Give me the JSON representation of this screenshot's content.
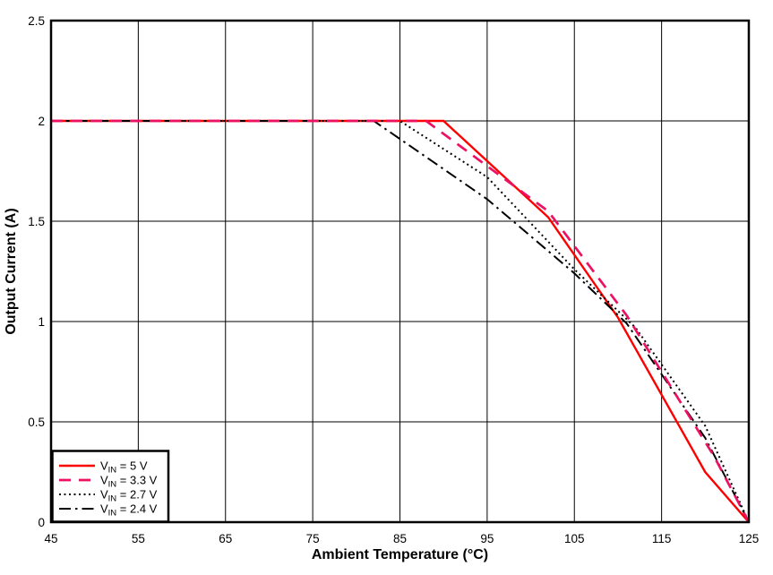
{
  "chart_data": {
    "type": "line",
    "title": "",
    "xlabel": "Ambient Temperature (°C)",
    "ylabel": "Output Current (A)",
    "xlim": [
      45,
      125
    ],
    "ylim": [
      0,
      2.5
    ],
    "x_ticks": [
      45,
      55,
      65,
      75,
      85,
      95,
      105,
      115,
      125
    ],
    "x_tick_labels": [
      "45",
      "55",
      "65",
      "75",
      "85",
      "95",
      "105",
      "115",
      "125"
    ],
    "y_ticks": [
      0,
      0.5,
      1,
      1.5,
      2,
      2.5
    ],
    "y_tick_labels": [
      "0",
      "0.5",
      "1",
      "1.5",
      "2",
      "2.5"
    ],
    "grid": "major, black, on both axes",
    "legend_position": "bottom-left",
    "axis_color": "#000000",
    "background_color": "#ffffff",
    "series": [
      {
        "name": "VIN = 5 V",
        "legend": {
          "pre": "V",
          "sub": "IN",
          "post": " = 5 V"
        },
        "color": "#FF0000",
        "style": "solid",
        "x": [
          45,
          90,
          102,
          110,
          120,
          125
        ],
        "y": [
          2,
          2,
          1.52,
          1.02,
          0.25,
          0
        ]
      },
      {
        "name": "VIN = 3.3 V",
        "legend": {
          "pre": "V",
          "sub": "IN",
          "post": " = 3.3 V"
        },
        "color": "#ED1164",
        "style": "long-dash",
        "x": [
          45,
          88,
          102,
          111,
          121,
          125
        ],
        "y": [
          2,
          2,
          1.55,
          1.03,
          0.33,
          0
        ]
      },
      {
        "name": "VIN = 2.7 V",
        "legend": {
          "pre": "V",
          "sub": "IN",
          "post": " = 2.7 V"
        },
        "color": "#000000",
        "style": "dotted",
        "x": [
          45,
          85,
          95,
          105,
          112,
          120,
          125
        ],
        "y": [
          2,
          2,
          1.72,
          1.26,
          0.97,
          0.48,
          0
        ]
      },
      {
        "name": "VIN = 2.4 V",
        "legend": {
          "pre": "V",
          "sub": "IN",
          "post": " = 2.4 V"
        },
        "color": "#000000",
        "style": "dash-dot",
        "x": [
          45,
          82,
          95,
          105,
          111,
          120,
          125
        ],
        "y": [
          2,
          2,
          1.61,
          1.24,
          0.99,
          0.42,
          0
        ]
      }
    ]
  }
}
